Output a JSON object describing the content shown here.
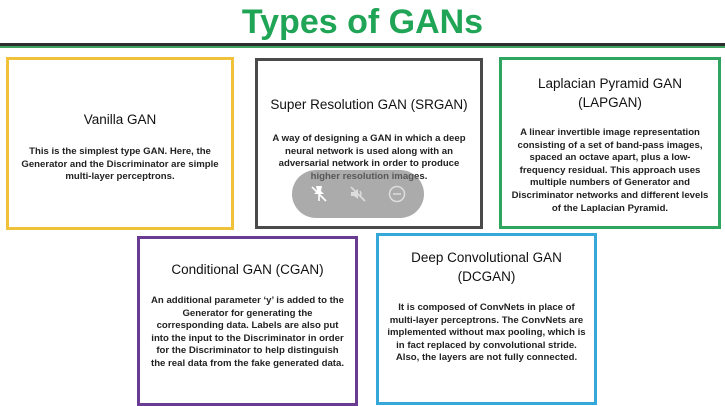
{
  "page": {
    "title": "Types of GANs",
    "title_color": "#20a456"
  },
  "cards": {
    "vanilla": {
      "title": "Vanilla GAN",
      "body": "This is the simplest type GAN. Here, the Generator and the Discriminator are simple multi-layer perceptrons.",
      "border_color": "#f0c23a"
    },
    "srgan": {
      "title": "Super Resolution GAN (SRGAN)",
      "body": "A way of designing a GAN in which a deep neural network is used along with an adversarial network in order to produce higher resolution images.",
      "border_color": "#4a4a4a"
    },
    "lapgan": {
      "title": "Laplacian Pyramid GAN (LAPGAN)",
      "body": "A linear invertible image representation consisting of a set of band-pass images, spaced an octave apart, plus a low-frequency residual. This approach uses multiple numbers of Generator and Discriminator networks and different levels of the Laplacian Pyramid.",
      "border_color": "#2fa55f"
    },
    "cgan": {
      "title": "Conditional GAN (CGAN)",
      "body": "An additional parameter ‘y’ is added to the Generator for generating the corresponding data. Labels are also put into the input to the Discriminator in order for the Discriminator to help distinguish the real data from the fake generated data.",
      "border_color": "#6a3b93"
    },
    "dcgan": {
      "title": "Deep Convolutional GAN (DCGAN)",
      "body": "It is composed of ConvNets in place of multi-layer perceptrons. The ConvNets are implemented without max pooling, which is in fact replaced by convolutional stride. Also, the layers are not fully connected.",
      "border_color": "#35a8d9"
    }
  },
  "overlay_controls": {
    "icons": [
      "pin-off-icon",
      "mute-icon",
      "minus-circle-icon"
    ]
  }
}
